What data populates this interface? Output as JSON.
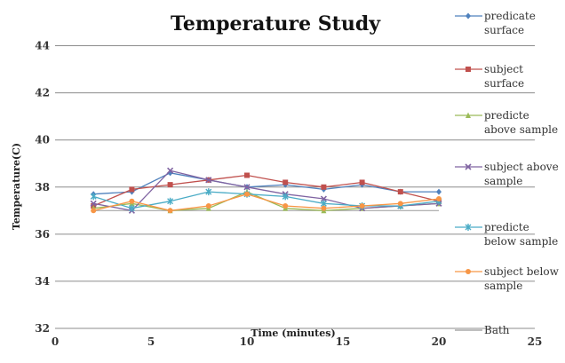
{
  "chart_data": {
    "type": "line",
    "title": "Temperature Study",
    "xlabel": "Time (minutes)",
    "ylabel": "Temperature(C)",
    "xlim": [
      0,
      25
    ],
    "ylim": [
      32,
      45
    ],
    "x_ticks": [
      0,
      5,
      10,
      15,
      20,
      25
    ],
    "y_ticks": [
      32,
      34,
      36,
      38,
      40,
      42,
      44
    ],
    "grid": "horizontal",
    "legend": "right",
    "x": [
      2,
      4,
      6,
      8,
      10,
      12,
      14,
      16,
      18,
      20
    ],
    "series": [
      {
        "name": [
          "predicate",
          "surface"
        ],
        "color": "#4f81bd",
        "marker": "diamond",
        "values": [
          37.7,
          37.8,
          38.6,
          38.3,
          38.0,
          38.1,
          37.9,
          38.1,
          37.8,
          37.8
        ]
      },
      {
        "name": [
          "subject",
          "surface"
        ],
        "color": "#c0504d",
        "marker": "square",
        "values": [
          37.2,
          37.9,
          38.1,
          38.3,
          38.5,
          38.2,
          38.0,
          38.2,
          37.8,
          37.4
        ]
      },
      {
        "name": [
          "predicte",
          "above sample"
        ],
        "color": "#9bbb59",
        "marker": "triangle",
        "values": [
          37.1,
          37.3,
          37.0,
          37.1,
          37.8,
          37.1,
          37.0,
          37.1,
          37.2,
          37.3
        ]
      },
      {
        "name": [
          "subject above",
          "sample"
        ],
        "color": "#8064a2",
        "marker": "x",
        "values": [
          37.3,
          37.0,
          38.7,
          38.3,
          38.0,
          37.7,
          37.5,
          37.1,
          37.2,
          37.3
        ]
      },
      {
        "name": [
          "predicte",
          "below sample"
        ],
        "color": "#4bacc6",
        "marker": "star",
        "values": [
          37.6,
          37.1,
          37.4,
          37.8,
          37.7,
          37.6,
          37.3,
          37.2,
          37.2,
          37.4
        ]
      },
      {
        "name": [
          "subject below",
          "sample"
        ],
        "color": "#f79646",
        "marker": "circle",
        "values": [
          37.0,
          37.4,
          37.0,
          37.2,
          37.7,
          37.2,
          37.1,
          37.2,
          37.3,
          37.5
        ]
      },
      {
        "name": [
          "Bath"
        ],
        "color": "#999999",
        "marker": "none",
        "values": [
          37.0,
          37.0,
          37.0,
          37.0,
          37.0,
          37.0,
          37.0,
          37.0,
          37.0,
          37.0
        ]
      }
    ]
  }
}
